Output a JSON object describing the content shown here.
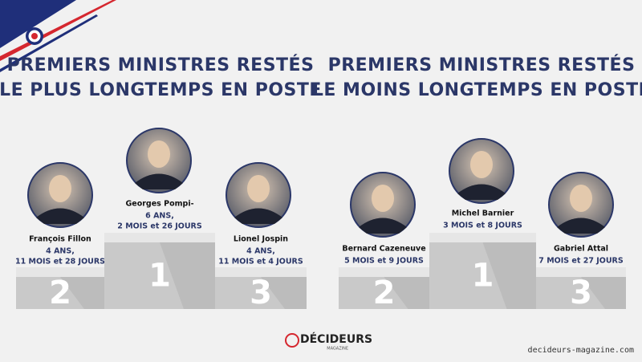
{
  "panels": [
    {
      "title": [
        "PREMIERS MINISTRES RESTÉS",
        "LE PLUS LONGTEMPS EN POSTE"
      ],
      "podium": [
        {
          "rank": "2",
          "name": "François Fillon",
          "duration": [
            "4 ANS,",
            "11 MOIS et 28 JOURS"
          ]
        },
        {
          "rank": "1",
          "name": "Georges Pompi-",
          "duration": [
            "6 ANS,",
            "2 MOIS et 26 JOURS"
          ]
        },
        {
          "rank": "3",
          "name": "Lionel Jospin",
          "duration": [
            "4 ANS,",
            "11 MOIS et 4 JOURS"
          ]
        }
      ]
    },
    {
      "title": [
        "PREMIERS MINISTRES RESTÉS",
        "LE MOINS LONGTEMPS EN POSTE"
      ],
      "podium": [
        {
          "rank": "2",
          "name": "Bernard Cazeneuve",
          "duration": [
            "5 MOIS et 9 JOURS"
          ]
        },
        {
          "rank": "1",
          "name": "Michel Barnier",
          "duration": [
            "3 MOIS et 8 JOURS"
          ]
        },
        {
          "rank": "3",
          "name": "Gabriel Attal",
          "duration": [
            "7 MOIS et 27 JOURS"
          ]
        }
      ]
    }
  ],
  "footer": {
    "logo": "DÉCIDEURS",
    "logo_sub": "MAGAZINE",
    "url": "decideurs-magazine.com"
  }
}
